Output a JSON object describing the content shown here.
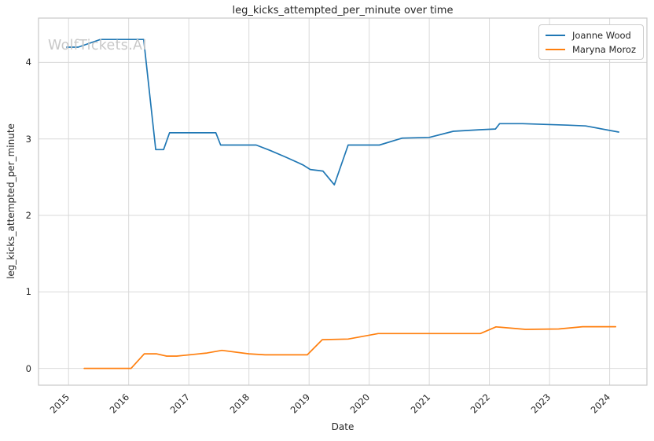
{
  "figure": {
    "title": "leg_kicks_attempted_per_minute over time",
    "watermark": "WolfTickets.AI",
    "xlabel": "Date",
    "ylabel": "leg_kicks_attempted_per_minute"
  },
  "chart_data": {
    "type": "line",
    "title": "leg_kicks_attempted_per_minute over time",
    "xlabel": "Date",
    "ylabel": "leg_kicks_attempted_per_minute",
    "watermark": "WolfTickets.AI",
    "grid": true,
    "legend_position": "upper right",
    "xlim": [
      2014.5,
      2024.62
    ],
    "ylim": [
      -0.22,
      4.58
    ],
    "x_ticks": [
      "2015",
      "2016",
      "2017",
      "2018",
      "2019",
      "2020",
      "2021",
      "2022",
      "2023",
      "2024"
    ],
    "y_ticks": [
      0,
      1,
      2,
      3,
      4
    ],
    "colors": {
      "grid": "#d9d9d9",
      "spine": "#c9c9c9",
      "tick_text": "#262626",
      "watermark": "#c8c8c8"
    },
    "series": [
      {
        "name": "Joanne Wood",
        "color": "#1f77b4",
        "x": [
          2014.97,
          2015.16,
          2015.53,
          2016.25,
          2016.45,
          2016.58,
          2016.68,
          2017.45,
          2017.53,
          2018.12,
          2018.35,
          2018.62,
          2018.9,
          2019.02,
          2019.23,
          2019.42,
          2019.65,
          2020.17,
          2020.55,
          2021.0,
          2021.4,
          2021.85,
          2022.1,
          2022.17,
          2022.55,
          2023.3,
          2023.6,
          2024.15
        ],
        "y": [
          4.2,
          4.2,
          4.3,
          4.3,
          2.86,
          2.86,
          3.08,
          3.08,
          2.92,
          2.92,
          2.85,
          2.76,
          2.66,
          2.6,
          2.58,
          2.4,
          2.92,
          2.92,
          3.01,
          3.02,
          3.1,
          3.12,
          3.13,
          3.2,
          3.2,
          3.18,
          3.17,
          3.09
        ]
      },
      {
        "name": "Maryna Moroz",
        "color": "#ff7f0e",
        "x": [
          2015.26,
          2016.04,
          2016.26,
          2016.46,
          2016.63,
          2016.8,
          2017.3,
          2017.55,
          2018.0,
          2018.27,
          2018.97,
          2019.22,
          2019.65,
          2020.15,
          2021.85,
          2022.11,
          2022.6,
          2023.15,
          2023.55,
          2024.1
        ],
        "y": [
          0.0,
          0.0,
          0.19,
          0.19,
          0.16,
          0.16,
          0.2,
          0.235,
          0.19,
          0.177,
          0.177,
          0.375,
          0.383,
          0.455,
          0.455,
          0.543,
          0.51,
          0.515,
          0.545,
          0.545
        ]
      }
    ]
  }
}
